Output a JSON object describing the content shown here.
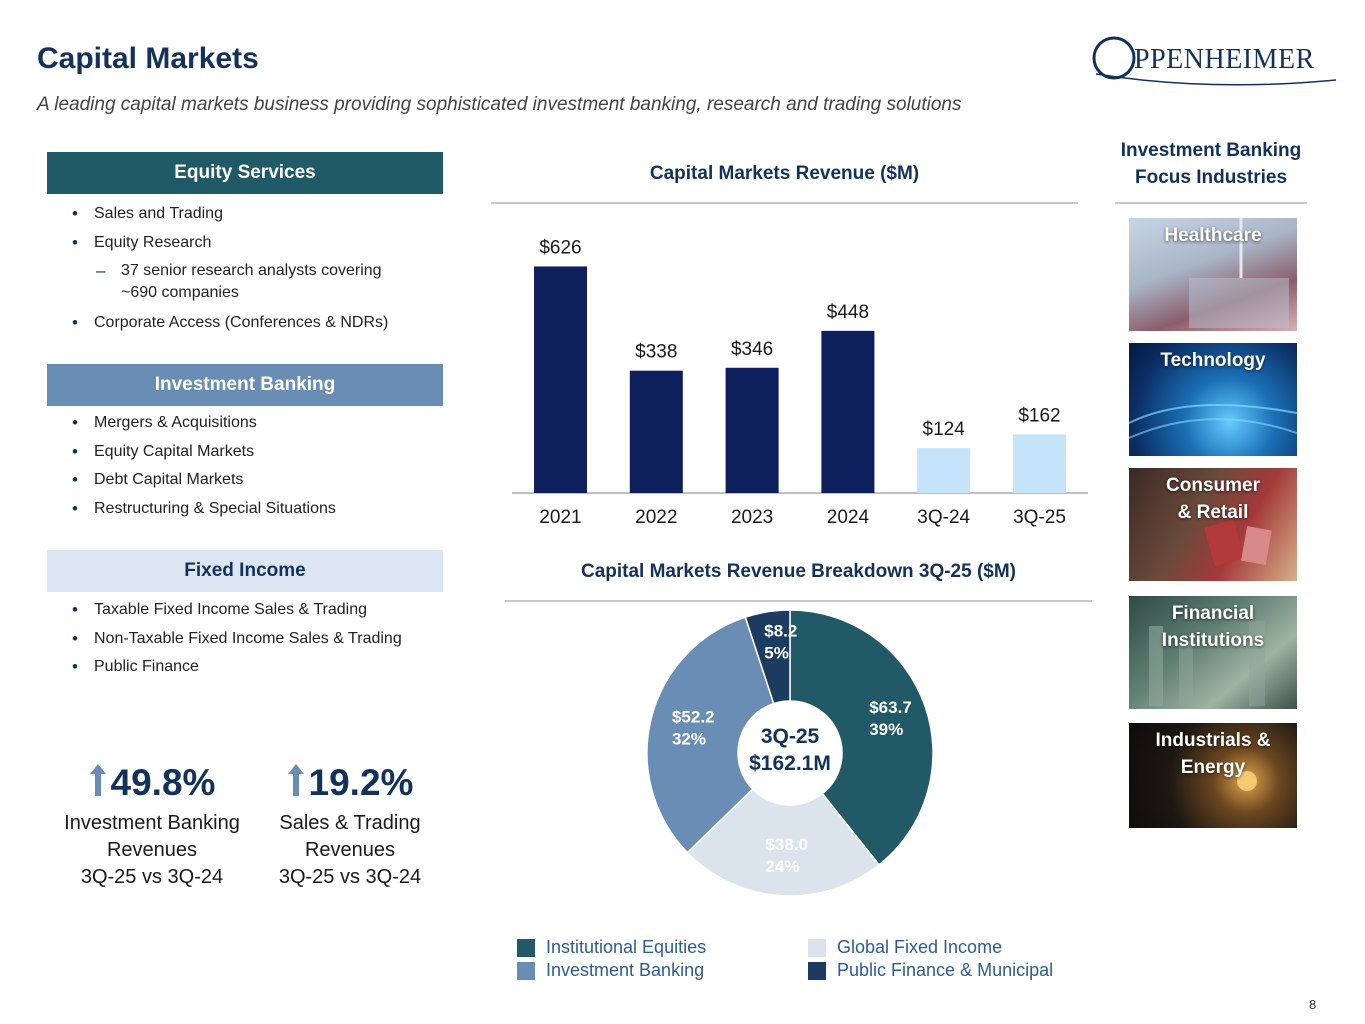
{
  "header": {
    "title": "Capital Markets",
    "subtitle": "A leading capital markets business providing sophisticated investment banking, research and trading solutions",
    "logo_text": "PPENHEIMER"
  },
  "sections": {
    "equity": {
      "title": "Equity Services",
      "items": [
        "Sales and Trading",
        "Equity Research",
        "Corporate Access (Conferences & NDRs)"
      ],
      "sub_item_line1": "37 senior research analysts covering",
      "sub_item_line2": "~690 companies"
    },
    "ib": {
      "title": "Investment Banking",
      "items": [
        "Mergers & Acquisitions",
        "Equity Capital Markets",
        "Debt Capital Markets",
        "Restructuring & Special Situations"
      ]
    },
    "fi": {
      "title": "Fixed Income",
      "items": [
        "Taxable Fixed Income Sales & Trading",
        "Non-Taxable Fixed Income Sales & Trading",
        "Public Finance"
      ]
    }
  },
  "metrics": [
    {
      "pct": "49.8%",
      "line1": "Investment Banking",
      "line2": "Revenues",
      "line3": "3Q-25 vs 3Q-24"
    },
    {
      "pct": "19.2%",
      "line1": "Sales & Trading",
      "line2": "Revenues",
      "line3": "3Q-25 vs 3Q-24"
    }
  ],
  "chart_data": [
    {
      "type": "bar",
      "title": "Capital Markets Revenue ($M)",
      "categories": [
        "2021",
        "2022",
        "2023",
        "2024",
        "3Q-24",
        "3Q-25"
      ],
      "values": [
        626,
        338,
        346,
        448,
        124,
        162
      ],
      "labels": [
        "$626",
        "$338",
        "$346",
        "$448",
        "$124",
        "$162"
      ],
      "colors": [
        "#0d1f5c",
        "#0d1f5c",
        "#0d1f5c",
        "#0d1f5c",
        "#c5e3fb",
        "#c5e3fb"
      ],
      "ylim": [
        0,
        630
      ]
    },
    {
      "type": "pie",
      "title": "Capital Markets Revenue Breakdown 3Q-25 ($M)",
      "center_line1": "3Q-25",
      "center_line2": "$162.1M",
      "total": 162.1,
      "slices": [
        {
          "name": "Institutional Equities",
          "value": 63.7,
          "value_label": "$63.7",
          "pct_label": "39%",
          "color": "#215a66",
          "text_color": "#ffffff"
        },
        {
          "name": "Global Fixed Income",
          "value": 38.0,
          "value_label": "$38.0",
          "pct_label": "24%",
          "color": "#dbe3ec",
          "text_color": "#ffffff"
        },
        {
          "name": "Investment Banking",
          "value": 52.2,
          "value_label": "$52.2",
          "pct_label": "32%",
          "color": "#6a8db6",
          "text_color": "#ffffff"
        },
        {
          "name": "Public Finance & Municipal",
          "value": 8.2,
          "value_label": "$8.2",
          "pct_label": "5%",
          "color": "#1c3b61",
          "text_color": "#ffffff"
        }
      ]
    }
  ],
  "legend": [
    "Institutional Equities",
    "Investment Banking",
    "Global Fixed Income",
    "Public Finance & Municipal"
  ],
  "side": {
    "heading_line1": "Investment Banking",
    "heading_line2": "Focus Industries",
    "tiles": [
      {
        "line1": "Healthcare",
        "line2": ""
      },
      {
        "line1": "Technology",
        "line2": ""
      },
      {
        "line1": "Consumer",
        "line2": "& Retail"
      },
      {
        "line1": "Financial",
        "line2": "Institutions"
      },
      {
        "line1": "Industrials &",
        "line2": "Energy"
      }
    ]
  },
  "page_number": "8"
}
